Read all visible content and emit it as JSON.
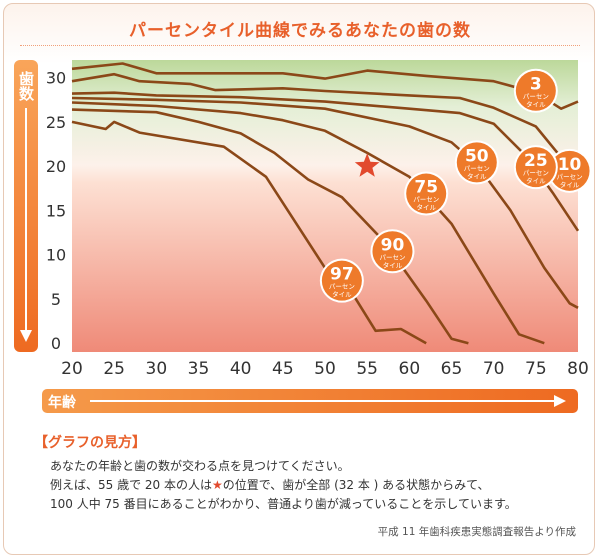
{
  "title": "パーセンタイル曲線でみるあなたの歯の数",
  "chart_data": {
    "type": "line",
    "title": "パーセンタイル曲線でみるあなたの歯の数",
    "xlabel": "年齢",
    "ylabel": "歯数",
    "xlim": [
      20,
      80
    ],
    "ylim": [
      -1,
      32
    ],
    "x_ticks": [
      "20",
      "25",
      "30",
      "35",
      "40",
      "45",
      "50",
      "55",
      "60",
      "65",
      "70",
      "75",
      "80"
    ],
    "y_ticks": [
      "0",
      "5",
      "10",
      "15",
      "20",
      "25",
      "30"
    ],
    "grid": false,
    "unit_label": "パーセンタイル",
    "series": [
      {
        "name": "3",
        "points": [
          [
            20,
            31
          ],
          [
            26,
            31.6
          ],
          [
            30,
            30.5
          ],
          [
            45,
            30.5
          ],
          [
            50,
            29.9
          ],
          [
            55,
            30.8
          ],
          [
            62,
            30.2
          ],
          [
            70,
            29.6
          ],
          [
            75,
            28.3
          ],
          [
            78,
            26.5
          ],
          [
            80,
            27.3
          ]
        ]
      },
      {
        "name": "10",
        "points": [
          [
            20,
            29.6
          ],
          [
            25,
            30.4
          ],
          [
            28,
            29.6
          ],
          [
            34,
            29.3
          ],
          [
            37,
            28.6
          ],
          [
            45,
            28.8
          ],
          [
            50,
            28.5
          ],
          [
            60,
            28
          ],
          [
            66,
            27.7
          ],
          [
            70,
            26.6
          ],
          [
            75,
            24.5
          ],
          [
            78,
            21
          ],
          [
            80,
            17.5
          ]
        ]
      },
      {
        "name": "25",
        "points": [
          [
            20,
            28.2
          ],
          [
            25,
            28.3
          ],
          [
            30,
            28
          ],
          [
            40,
            27.8
          ],
          [
            50,
            27.3
          ],
          [
            60,
            26.5
          ],
          [
            66,
            26
          ],
          [
            70,
            24.8
          ],
          [
            74,
            21
          ],
          [
            77,
            17
          ],
          [
            80,
            12.7
          ]
        ]
      },
      {
        "name": "50",
        "points": [
          [
            20,
            27.7
          ],
          [
            30,
            27.5
          ],
          [
            40,
            27.2
          ],
          [
            50,
            26.5
          ],
          [
            60,
            24.5
          ],
          [
            65,
            22.7
          ],
          [
            68,
            20.2
          ],
          [
            72,
            15
          ],
          [
            76,
            8.5
          ],
          [
            79,
            4.5
          ],
          [
            80,
            4
          ]
        ]
      },
      {
        "name": "75",
        "points": [
          [
            20,
            27.2
          ],
          [
            30,
            26.8
          ],
          [
            40,
            26
          ],
          [
            45,
            25.2
          ],
          [
            50,
            24
          ],
          [
            55,
            21.5
          ],
          [
            60,
            18.8
          ],
          [
            65,
            13.5
          ],
          [
            70,
            5.6
          ],
          [
            73,
            1
          ],
          [
            76,
            0
          ]
        ]
      },
      {
        "name": "90",
        "points": [
          [
            20,
            26.4
          ],
          [
            30,
            26.1
          ],
          [
            35,
            25
          ],
          [
            40,
            23.7
          ],
          [
            44,
            21.5
          ],
          [
            48,
            18.5
          ],
          [
            52,
            16.5
          ],
          [
            57,
            11.5
          ],
          [
            62,
            4.8
          ],
          [
            65,
            0.5
          ],
          [
            67,
            0
          ]
        ]
      },
      {
        "name": "97",
        "points": [
          [
            20,
            25
          ],
          [
            24,
            24.2
          ],
          [
            25,
            25
          ],
          [
            28,
            23.8
          ],
          [
            38,
            22.2
          ],
          [
            43,
            18.8
          ],
          [
            50,
            8.5
          ],
          [
            53,
            6
          ],
          [
            56,
            1.4
          ],
          [
            59,
            1.6
          ],
          [
            62,
            0
          ]
        ]
      }
    ],
    "marker": {
      "x": 55,
      "y": 20,
      "symbol": "star"
    }
  },
  "y_axis_label": "歯数",
  "x_axis_label": "年齢",
  "badge_unit": "パーセン\nタイル",
  "how_to": {
    "heading": "【グラフの見方】",
    "line1": "あなたの年齢と歯の数が交わる点を見つけてください。",
    "line2a": "例えば、55 歳で 20 本の人は",
    "star": "★",
    "line2b": "の位置で、歯が全部 (32 本 ) ある状態からみて、",
    "line3": "100 人中 75 番目にあることがわかり、普通より歯が減っていることを示しています。"
  },
  "source": "平成 11 年歯科疾患実態調査報告より作成",
  "colors": {
    "accent": "#e8602b",
    "line": "#8b4818",
    "badge": "#ee7a2a",
    "star": "#e24a2e"
  }
}
